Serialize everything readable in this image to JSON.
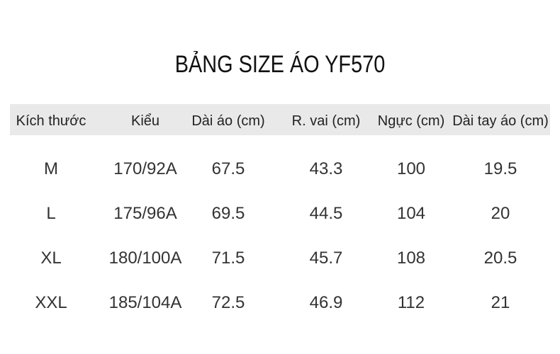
{
  "title": "BẢNG SIZE ÁO YF570",
  "table": {
    "header": [
      "Kích thước",
      "Kiểu",
      "Dài áo (cm)",
      "R. vai (cm)",
      "Ngực (cm)",
      "Dài tay áo (cm)"
    ],
    "rows": [
      [
        "M",
        "170/92A",
        "67.5",
        "43.3",
        "100",
        "19.5"
      ],
      [
        "L",
        "175/96A",
        "69.5",
        "44.5",
        "104",
        "20"
      ],
      [
        "XL",
        "180/100A",
        "71.5",
        "45.7",
        "108",
        "20.5"
      ],
      [
        "XXL",
        "185/104A",
        "72.5",
        "46.9",
        "112",
        "21"
      ]
    ]
  }
}
